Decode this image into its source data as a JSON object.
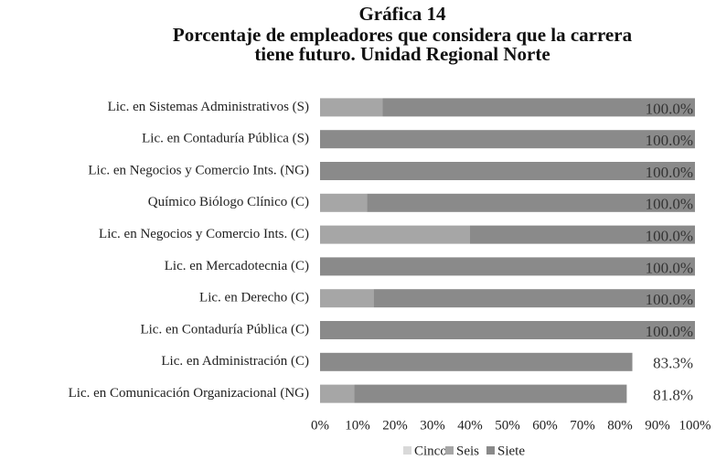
{
  "chart_data": {
    "type": "stacked_barh",
    "title": [
      "Gráfica 14",
      "Porcentaje de empleadores que considera que la carrera",
      "tiene futuro. Unidad Regional Norte"
    ],
    "categories": [
      "Lic. en Sistemas Administrativos (S)",
      "Lic. en Contaduría Pública (S)",
      "Lic. en Negocios y Comercio Ints. (NG)",
      "Químico Biólogo Clínico (C)",
      "Lic. en Negocios y Comercio Ints. (C)",
      "Lic. en Mercadotecnia (C)",
      "Lic. en Derecho (C)",
      "Lic. en Contaduría Pública (C)",
      "Lic. en Administración (C)",
      "Lic. en Comunicación Organizacional (NG)"
    ],
    "series": [
      {
        "name": "Cinco",
        "color": "#d9d9d9",
        "values": [
          0,
          0,
          0,
          0,
          0,
          0,
          0,
          0,
          0,
          0
        ]
      },
      {
        "name": "Seis",
        "color": "#a6a6a6",
        "values": [
          16.7,
          0,
          0,
          12.5,
          40,
          0,
          14.3,
          0,
          0,
          9.1
        ]
      },
      {
        "name": "Siete",
        "color": "#8a8a8a",
        "values": [
          83.3,
          100,
          100,
          87.5,
          60,
          100,
          85.7,
          100,
          83.3,
          72.7
        ]
      }
    ],
    "total_labels": [
      "100.0%",
      "100.0%",
      "100.0%",
      "100.0%",
      "100.0%",
      "100.0%",
      "100.0%",
      "100.0%",
      "83.3%",
      "81.8%"
    ],
    "xlim": [
      0,
      100
    ],
    "xticks": [
      {
        "value": 0,
        "label": "0%"
      },
      {
        "value": 10,
        "label": "10%"
      },
      {
        "value": 20,
        "label": "20%"
      },
      {
        "value": 30,
        "label": "30%"
      },
      {
        "value": 40,
        "label": "40%"
      },
      {
        "value": 50,
        "label": "50%"
      },
      {
        "value": 60,
        "label": "60%"
      },
      {
        "value": 70,
        "label": "70%"
      },
      {
        "value": 80,
        "label": "80%"
      },
      {
        "value": 90,
        "label": "90%"
      },
      {
        "value": 100,
        "label": "100%"
      }
    ],
    "legend": "bottom"
  }
}
